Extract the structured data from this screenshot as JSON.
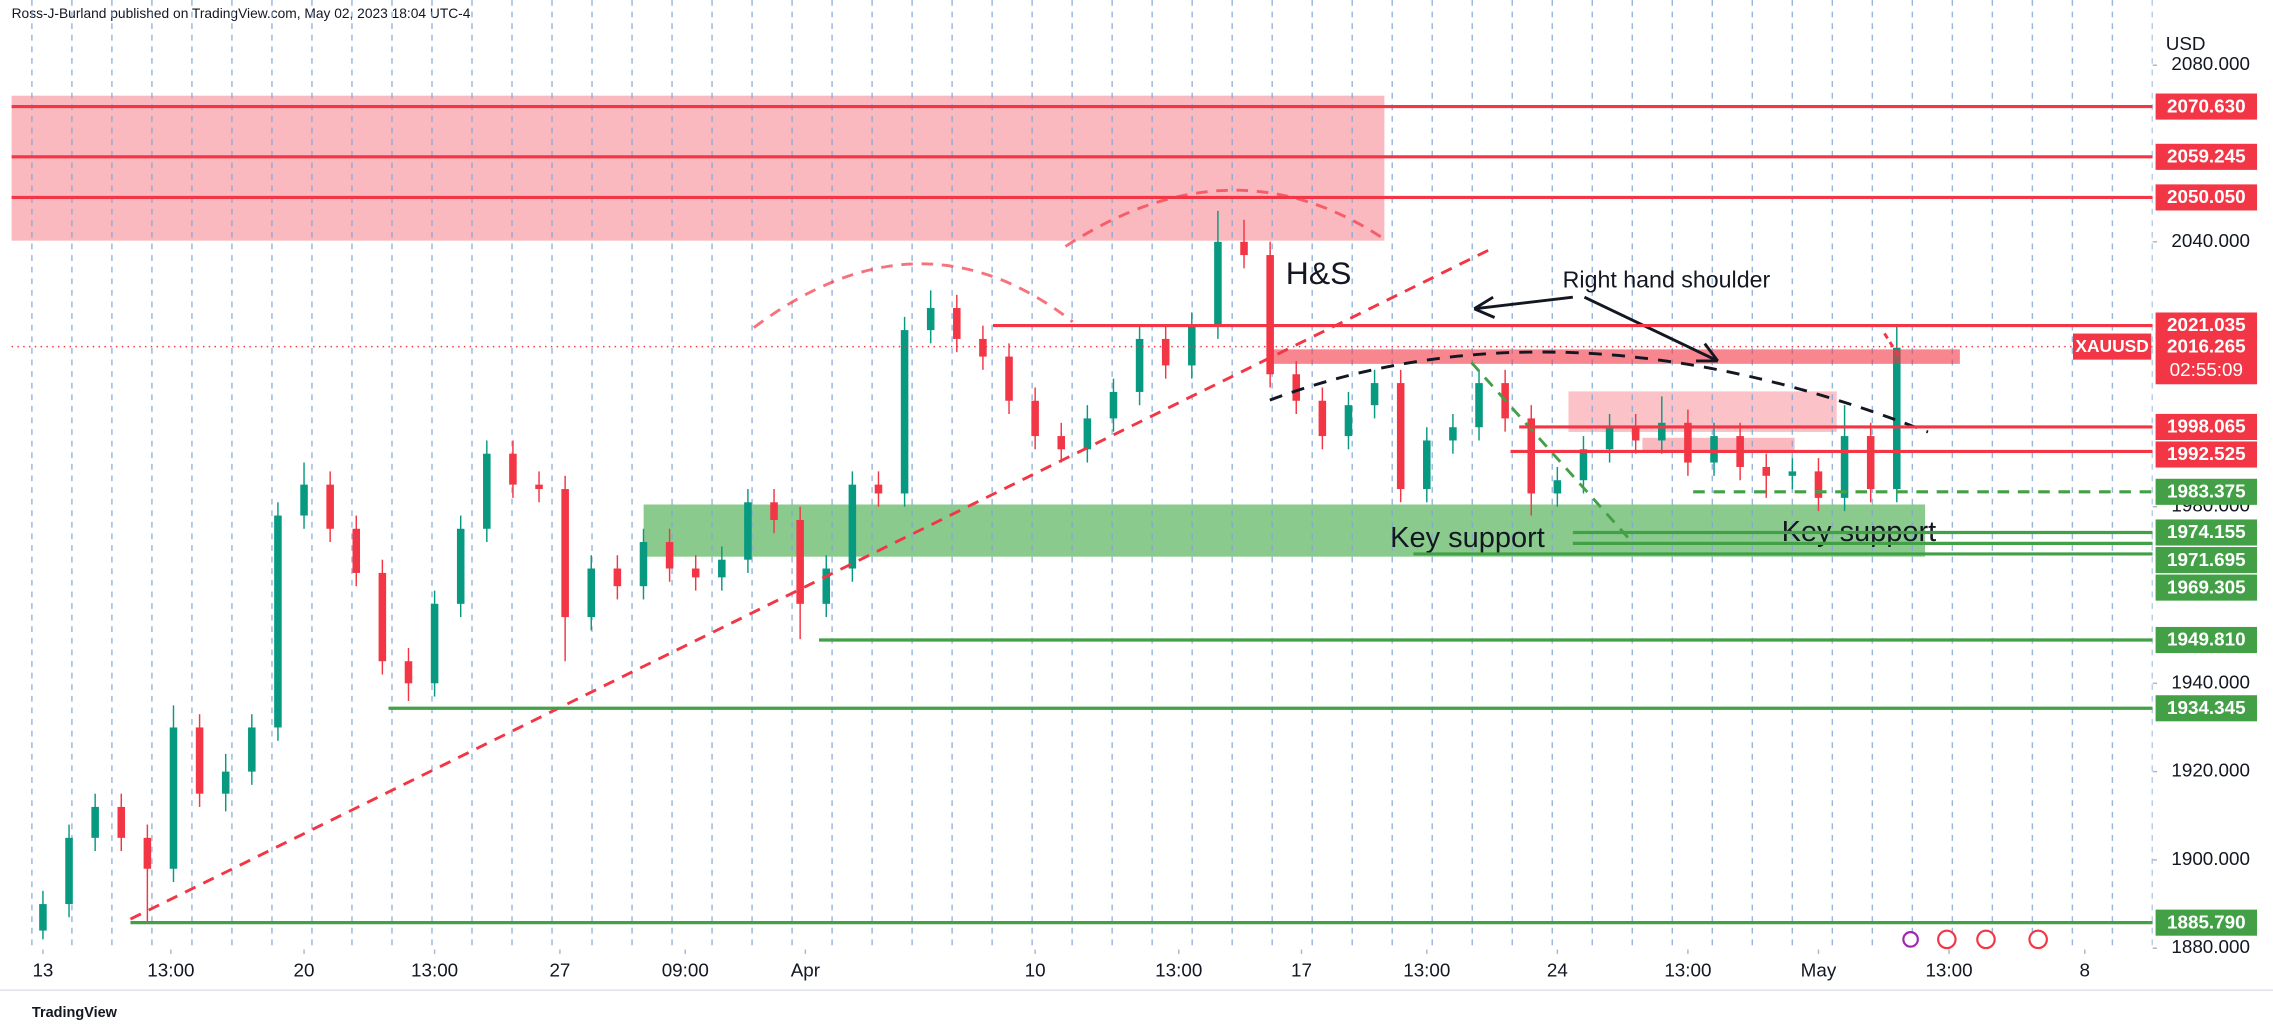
{
  "header": {
    "author_line": "Ross-J-Burland published on TradingView.com, May 02, 2023 18:04 UTC-4",
    "footer": "TradingView"
  },
  "chart_data": {
    "type": "candlestick",
    "currency": "USD",
    "up_color": "#089981",
    "down_color": "#f23645",
    "x": [
      0,
      0.5,
      1,
      1.5,
      2,
      2.5,
      3,
      3.5,
      4,
      4.5,
      5,
      5.5,
      6,
      6.5,
      7,
      7.5,
      8,
      8.5,
      9,
      9.5,
      10,
      10.5,
      11,
      11.5,
      12,
      12.5,
      13,
      13.5,
      14,
      14.5,
      15,
      15.5,
      16,
      16.5,
      17,
      17.5,
      18,
      18.5,
      19,
      19.5,
      20,
      20.5,
      21,
      21.5,
      22,
      22.5,
      23,
      23.5,
      24,
      24.5,
      25,
      25.5,
      26,
      26.5,
      27,
      27.5,
      28,
      28.5,
      29,
      29.5,
      30,
      30.5,
      31,
      31.5,
      32,
      32.5,
      33,
      33.5,
      34,
      34.5,
      35,
      35.5
    ],
    "open": [
      1884,
      1890,
      1905,
      1912,
      1905,
      1898,
      1930,
      1915,
      1920,
      1930,
      1978,
      1985,
      1975,
      1965,
      1945,
      1940,
      1958,
      1975,
      1992,
      1985,
      1984,
      1955,
      1966,
      1962,
      1972,
      1966,
      1964,
      1968,
      1981,
      1977,
      1958,
      1966,
      1985,
      1983,
      2020,
      2025,
      2018,
      2014,
      2004,
      1996,
      1993,
      2000,
      2006,
      2018,
      2012,
      2021,
      2040,
      2037,
      2010,
      2004,
      1996,
      2003,
      2008,
      1984,
      1995,
      1998,
      2008,
      2000,
      1983,
      1986,
      1993,
      1998,
      1995,
      1999,
      1990,
      1996,
      1989,
      1987,
      1988,
      1982,
      1996,
      1984
    ],
    "high": [
      1893,
      1908,
      1915,
      1915,
      1908,
      1935,
      1933,
      1924,
      1933,
      1981,
      1990,
      1988,
      1978,
      1968,
      1948,
      1961,
      1978,
      1995,
      1995,
      1988,
      1987,
      1969,
      1969,
      1975,
      1975,
      1969,
      1971,
      1984,
      1984,
      1980,
      1969,
      1988,
      1988,
      2023,
      2029,
      2028,
      2021,
      2017,
      2007,
      1999,
      2003,
      2009,
      2021,
      2021,
      2024,
      2047,
      2045,
      2040,
      2013,
      2007,
      2006,
      2011,
      2011,
      1998,
      2001,
      2011,
      2011,
      2003,
      1989,
      1996,
      2001,
      2001,
      2005,
      2002,
      1999,
      1999,
      1992,
      1991,
      1991,
      2003,
      1999,
      2021
    ],
    "low": [
      1882,
      1887,
      1902,
      1902,
      1886,
      1895,
      1912,
      1911,
      1917,
      1927,
      1975,
      1972,
      1962,
      1942,
      1936,
      1937,
      1955,
      1972,
      1982,
      1981,
      1945,
      1952,
      1959,
      1959,
      1963,
      1961,
      1961,
      1965,
      1974,
      1950,
      1955,
      1963,
      1980,
      1980,
      2017,
      2015,
      2011,
      2001,
      1993,
      1990,
      1990,
      1997,
      2003,
      2009,
      2009,
      2018,
      2034,
      2007,
      2001,
      1993,
      1993,
      2000,
      1981,
      1981,
      1992,
      1995,
      1997,
      1978,
      1980,
      1983,
      1990,
      1992,
      1992,
      1987,
      1987,
      1986,
      1982,
      1984,
      1979,
      1979,
      1981,
      1981
    ],
    "close": [
      1890,
      1905,
      1912,
      1905,
      1898,
      1930,
      1915,
      1920,
      1930,
      1978,
      1985,
      1975,
      1965,
      1945,
      1940,
      1958,
      1975,
      1992,
      1985,
      1984,
      1955,
      1966,
      1962,
      1972,
      1966,
      1964,
      1968,
      1981,
      1977,
      1958,
      1966,
      1985,
      1983,
      2020,
      2025,
      2018,
      2014,
      2004,
      1996,
      1993,
      2000,
      2006,
      2018,
      2012,
      2021,
      2040,
      2037,
      2010,
      2004,
      1996,
      2003,
      2008,
      1984,
      1995,
      1998,
      2008,
      2000,
      1983,
      1986,
      1993,
      1998,
      1995,
      1999,
      1990,
      1996,
      1989,
      1987,
      1988,
      1982,
      1996,
      1984,
      2016
    ],
    "xlim": [
      -0.6,
      40.4
    ],
    "xticks": [
      {
        "value": 0,
        "label": "13"
      },
      {
        "value": 2.45,
        "label": "13:00"
      },
      {
        "value": 5,
        "label": "20"
      },
      {
        "value": 7.5,
        "label": "13:00"
      },
      {
        "value": 9.9,
        "label": "27"
      },
      {
        "value": 12.3,
        "label": "09:00"
      },
      {
        "value": 14.6,
        "label": "Apr"
      },
      {
        "value": 19,
        "label": "10"
      },
      {
        "value": 21.75,
        "label": "13:00"
      },
      {
        "value": 24.1,
        "label": "17"
      },
      {
        "value": 26.5,
        "label": "13:00"
      },
      {
        "value": 29,
        "label": "24"
      },
      {
        "value": 31.5,
        "label": "13:00"
      },
      {
        "value": 34,
        "label": "May"
      },
      {
        "value": 36.5,
        "label": "13:00"
      },
      {
        "value": 39.1,
        "label": "8"
      }
    ],
    "ylim": [
      1879.7,
      2088.2
    ],
    "yticks": [
      {
        "value": 2080,
        "label": "2080.000"
      },
      {
        "value": 2040,
        "label": "2040.000"
      },
      {
        "value": 1980,
        "label": "1980.000"
      },
      {
        "value": 1940,
        "label": "1940.000"
      },
      {
        "value": 1920,
        "label": "1920.000"
      },
      {
        "value": 1900,
        "label": "1900.000"
      },
      {
        "value": 1880,
        "label": "1880.000"
      }
    ],
    "levels": [
      {
        "value": 2070.63,
        "label": "2070.630",
        "color": "#f23645"
      },
      {
        "value": 2059.245,
        "label": "2059.245",
        "color": "#f23645"
      },
      {
        "value": 2050.05,
        "label": "2050.050",
        "color": "#f23645"
      },
      {
        "value": 2021.035,
        "label": "2021.035",
        "color": "#f23645"
      },
      {
        "value": 1998.065,
        "label": "1998.065",
        "color": "#f23645"
      },
      {
        "value": 1992.525,
        "label": "1992.525",
        "color": "#f23645"
      },
      {
        "value": 1983.375,
        "label": "1983.375",
        "color": "#43a047",
        "dashed": true
      },
      {
        "value": 1974.155,
        "label": "1974.155",
        "color": "#43a047"
      },
      {
        "value": 1971.695,
        "label": "1971.695",
        "color": "#43a047"
      },
      {
        "value": 1969.305,
        "label": "1969.305",
        "color": "#43a047"
      },
      {
        "value": 1949.81,
        "label": "1949.810",
        "color": "#43a047"
      },
      {
        "value": 1934.345,
        "label": "1934.345",
        "color": "#43a047"
      },
      {
        "value": 1885.79,
        "label": "1885.790",
        "color": "#43a047"
      }
    ],
    "last_price": {
      "symbol": "XAUUSD",
      "value": 2016.265,
      "label": "2016.265",
      "countdown": "02:55:09",
      "color": "#f23645"
    },
    "annotations": [
      "H&S",
      "Right hand shoulder",
      "Key support",
      "Key support"
    ]
  }
}
